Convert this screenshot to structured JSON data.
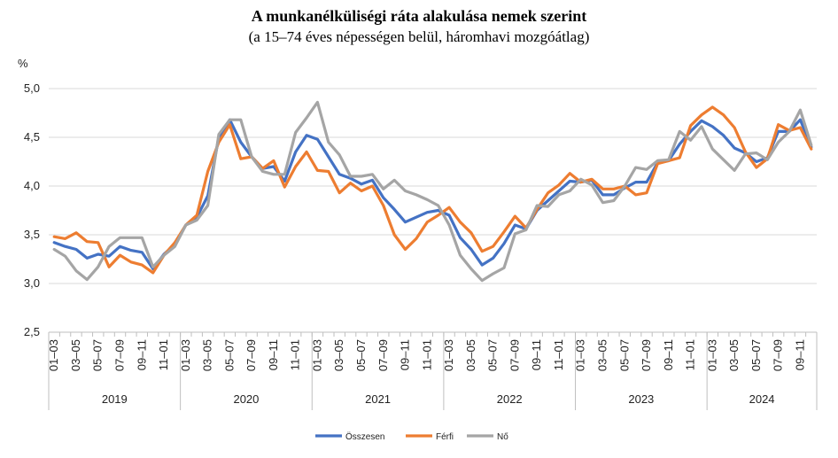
{
  "chart_data": {
    "type": "line",
    "title": "A munkanélküliségi ráta alakulása nemek szerint",
    "subtitle": "(a 15–74 éves népességen belül, háromhavi mozgóátlag)",
    "ylabel": "%",
    "ylim": [
      2.5,
      5.0
    ],
    "yticks": [
      "2,5",
      "3,0",
      "3,5",
      "4,0",
      "4,5",
      "5,0"
    ],
    "grid": true,
    "legend_position": "bottom",
    "years": [
      "2019",
      "2020",
      "2021",
      "2022",
      "2023",
      "2024"
    ],
    "month_labels": [
      "01–03",
      "03–05",
      "05–07",
      "07–09",
      "09–11",
      "11–01"
    ],
    "x_label_years": [
      "2019",
      "2020",
      "2021",
      "2022",
      "2023",
      "2024"
    ],
    "series": [
      {
        "name": "Összesen",
        "color": "#4472C4",
        "values": [
          3.42,
          3.38,
          3.35,
          3.26,
          3.3,
          3.28,
          3.38,
          3.34,
          3.32,
          3.15,
          3.3,
          3.4,
          3.6,
          3.68,
          3.9,
          4.5,
          4.68,
          4.45,
          4.3,
          4.18,
          4.2,
          4.05,
          4.35,
          4.52,
          4.48,
          4.3,
          4.12,
          4.08,
          4.02,
          4.06,
          3.88,
          3.76,
          3.63,
          3.68,
          3.73,
          3.75,
          3.7,
          3.47,
          3.35,
          3.19,
          3.26,
          3.41,
          3.6,
          3.56,
          3.75,
          3.85,
          3.95,
          4.05,
          4.04,
          4.06,
          3.91,
          3.91,
          3.98,
          4.04,
          4.04,
          4.24,
          4.26,
          4.43,
          4.56,
          4.67,
          4.61,
          4.52,
          4.39,
          4.34,
          4.25,
          4.29,
          4.56,
          4.56,
          4.68,
          4.4
        ]
      },
      {
        "name": "Férfi",
        "color": "#ED7D31",
        "values": [
          3.48,
          3.46,
          3.52,
          3.43,
          3.42,
          3.17,
          3.29,
          3.22,
          3.19,
          3.11,
          3.29,
          3.42,
          3.6,
          3.7,
          4.15,
          4.45,
          4.63,
          4.28,
          4.3,
          4.18,
          4.26,
          3.99,
          4.2,
          4.35,
          4.16,
          4.15,
          3.93,
          4.03,
          3.95,
          4.0,
          3.8,
          3.5,
          3.35,
          3.46,
          3.63,
          3.7,
          3.78,
          3.63,
          3.52,
          3.33,
          3.38,
          3.53,
          3.69,
          3.57,
          3.76,
          3.93,
          4.01,
          4.13,
          4.04,
          4.07,
          3.97,
          3.97,
          4.0,
          3.91,
          3.93,
          4.23,
          4.26,
          4.29,
          4.62,
          4.73,
          4.81,
          4.73,
          4.6,
          4.35,
          4.19,
          4.28,
          4.63,
          4.57,
          4.6,
          4.38
        ]
      },
      {
        "name": "Nő",
        "color": "#A5A5A5",
        "values": [
          3.35,
          3.28,
          3.13,
          3.04,
          3.17,
          3.38,
          3.47,
          3.47,
          3.47,
          3.17,
          3.29,
          3.38,
          3.6,
          3.65,
          3.8,
          4.53,
          4.68,
          4.68,
          4.3,
          4.15,
          4.12,
          4.12,
          4.55,
          4.7,
          4.86,
          4.45,
          4.32,
          4.1,
          4.1,
          4.12,
          3.97,
          4.06,
          3.95,
          3.91,
          3.86,
          3.8,
          3.6,
          3.29,
          3.15,
          3.03,
          3.1,
          3.16,
          3.51,
          3.55,
          3.8,
          3.79,
          3.91,
          3.95,
          4.07,
          4.01,
          3.83,
          3.85,
          4.0,
          4.19,
          4.17,
          4.26,
          4.27,
          4.56,
          4.47,
          4.61,
          4.38,
          4.27,
          4.16,
          4.33,
          4.34,
          4.27,
          4.45,
          4.56,
          4.78,
          4.42
        ]
      }
    ]
  }
}
